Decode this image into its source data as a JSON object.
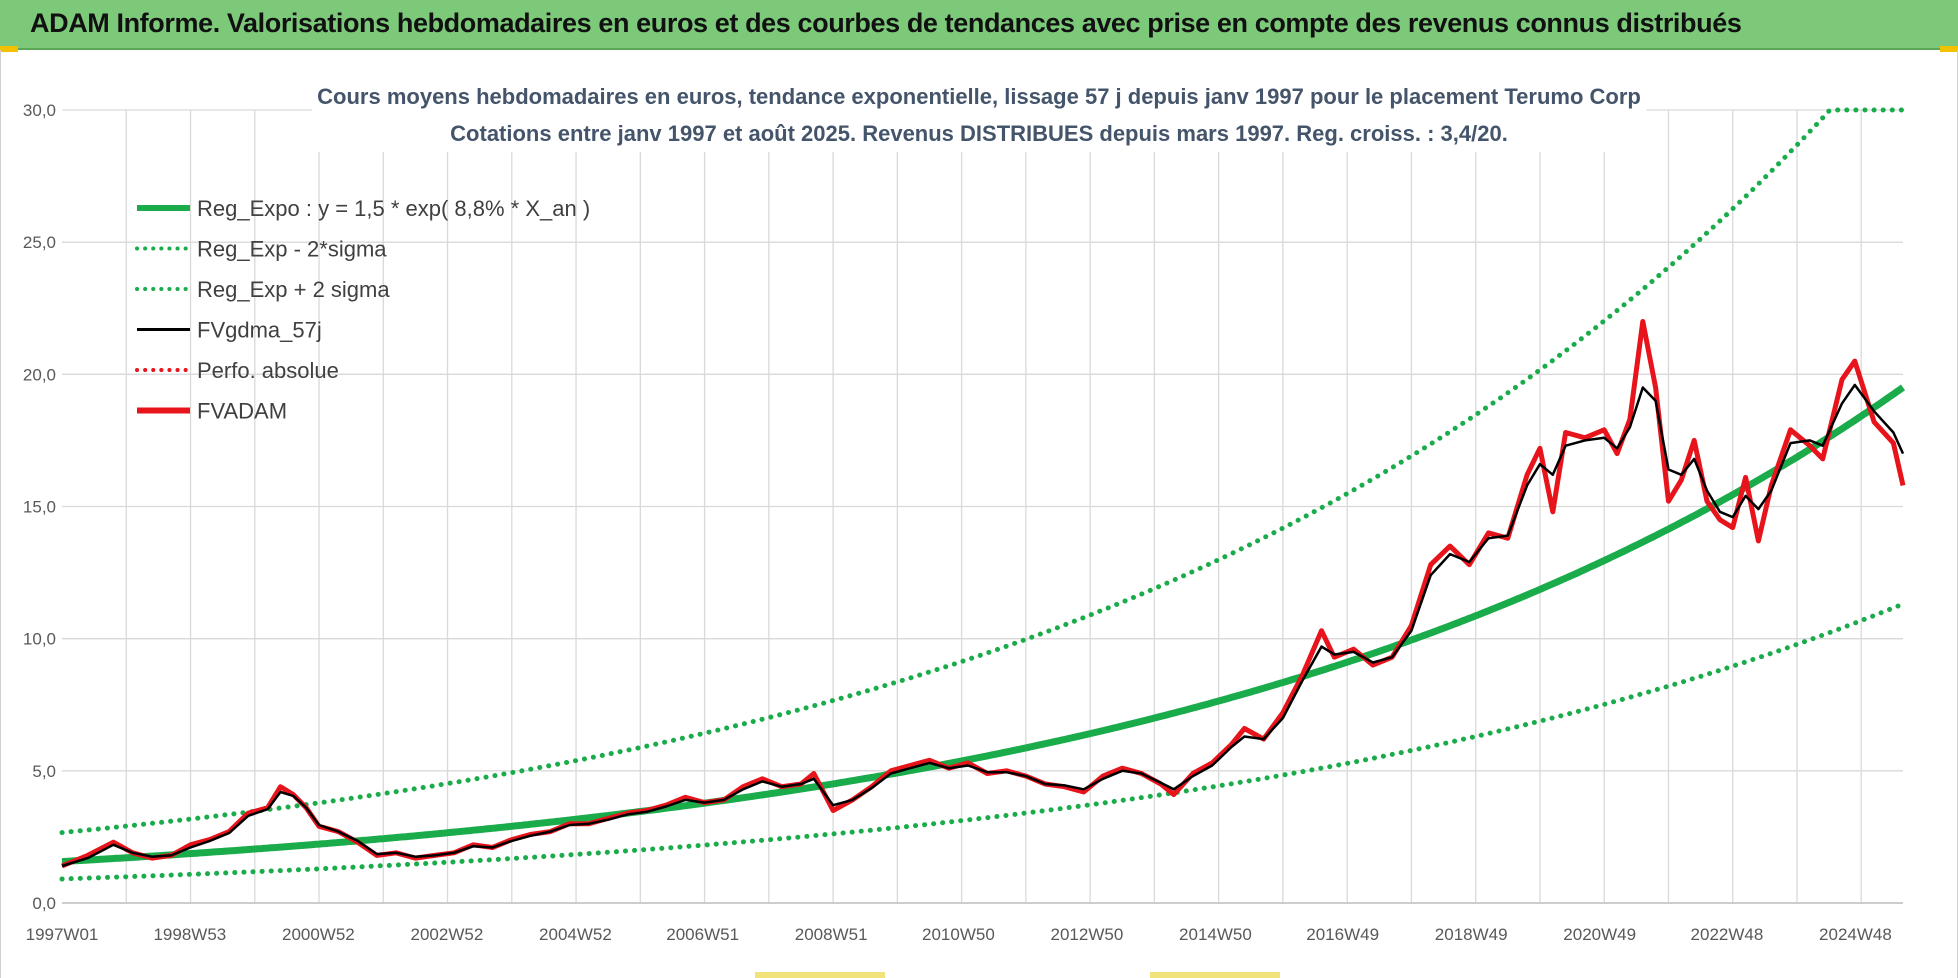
{
  "banner": {
    "title": "ADAM Informe. Valorisations hebdomadaires en euros et des courbes de tendances avec prise en compte des revenus connus distribués"
  },
  "colors": {
    "banner_bg": "#7dc97a",
    "reg_expo": "#1aab4b",
    "sigma": "#1aab4b",
    "fvgdma": "#000000",
    "perfo": "#e8141b",
    "fvadam": "#e8141b",
    "grid": "#d9d9d9"
  },
  "chart_data": {
    "type": "line",
    "title": "Cours moyens hebdomadaires en euros, tendance exponentielle, lissage 57 j depuis janv 1997 pour le placement Terumo Corp",
    "subtitle": "Cotations entre janv 1997 et août 2025.  Revenus DISTRIBUES depuis mars 1997. Reg. croiss. : 3,4/20.",
    "xlabel": "",
    "ylabel": "",
    "xlim": [
      1997.0,
      2025.65
    ],
    "ylim": [
      0,
      30
    ],
    "y_ticks": [
      "0,0",
      "5,0",
      "10,0",
      "15,0",
      "20,0",
      "25,0",
      "30,0"
    ],
    "x_ticks": [
      {
        "label": "1997W01",
        "x": 1997.0
      },
      {
        "label": "1998W53",
        "x": 1998.99
      },
      {
        "label": "2000W52",
        "x": 2000.99
      },
      {
        "label": "2002W52",
        "x": 2002.99
      },
      {
        "label": "2004W52",
        "x": 2004.99
      },
      {
        "label": "2006W51",
        "x": 2006.97
      },
      {
        "label": "2008W51",
        "x": 2008.97
      },
      {
        "label": "2010W50",
        "x": 2010.95
      },
      {
        "label": "2012W50",
        "x": 2012.95
      },
      {
        "label": "2014W50",
        "x": 2014.95
      },
      {
        "label": "2016W49",
        "x": 2016.93
      },
      {
        "label": "2018W49",
        "x": 2018.93
      },
      {
        "label": "2020W49",
        "x": 2020.93
      },
      {
        "label": "2022W48",
        "x": 2022.91
      },
      {
        "label": "2024W48",
        "x": 2024.91
      }
    ],
    "grid": true,
    "legend_position": "top-left",
    "legend": [
      {
        "label": "Reg_Expo : y = 1,5 * exp( 8,8% *  X_an )",
        "style": "solid-thick",
        "color": "#1aab4b"
      },
      {
        "label": "Reg_Exp - 2*sigma",
        "style": "dotted",
        "color": "#1aab4b"
      },
      {
        "label": "Reg_Exp + 2 sigma",
        "style": "dotted",
        "color": "#1aab4b"
      },
      {
        "label": "FVgdma_57j",
        "style": "solid",
        "color": "#000000"
      },
      {
        "label": "Perfo. absolue",
        "style": "dotted",
        "color": "#e8141b"
      },
      {
        "label": "FVADAM",
        "style": "solid-thick",
        "color": "#e8141b"
      }
    ],
    "series": [
      {
        "name": "FVADAM",
        "points": [
          [
            1997.0,
            1.4
          ],
          [
            1997.4,
            1.8
          ],
          [
            1997.8,
            2.3
          ],
          [
            1998.1,
            1.9
          ],
          [
            1998.4,
            1.7
          ],
          [
            1998.7,
            1.8
          ],
          [
            1999.0,
            2.2
          ],
          [
            1999.3,
            2.4
          ],
          [
            1999.6,
            2.7
          ],
          [
            1999.9,
            3.4
          ],
          [
            2000.2,
            3.6
          ],
          [
            2000.4,
            4.4
          ],
          [
            2000.6,
            4.1
          ],
          [
            2000.8,
            3.6
          ],
          [
            2001.0,
            2.9
          ],
          [
            2001.3,
            2.7
          ],
          [
            2001.6,
            2.3
          ],
          [
            2001.9,
            1.8
          ],
          [
            2002.2,
            1.9
          ],
          [
            2002.5,
            1.7
          ],
          [
            2002.8,
            1.8
          ],
          [
            2003.1,
            1.9
          ],
          [
            2003.4,
            2.2
          ],
          [
            2003.7,
            2.1
          ],
          [
            2004.0,
            2.4
          ],
          [
            2004.3,
            2.6
          ],
          [
            2004.6,
            2.7
          ],
          [
            2004.9,
            3.0
          ],
          [
            2005.2,
            3.0
          ],
          [
            2005.5,
            3.2
          ],
          [
            2005.8,
            3.4
          ],
          [
            2006.1,
            3.5
          ],
          [
            2006.4,
            3.7
          ],
          [
            2006.7,
            4.0
          ],
          [
            2007.0,
            3.8
          ],
          [
            2007.3,
            3.9
          ],
          [
            2007.6,
            4.4
          ],
          [
            2007.9,
            4.7
          ],
          [
            2008.2,
            4.4
          ],
          [
            2008.5,
            4.5
          ],
          [
            2008.7,
            4.9
          ],
          [
            2009.0,
            3.5
          ],
          [
            2009.3,
            3.9
          ],
          [
            2009.6,
            4.4
          ],
          [
            2009.9,
            5.0
          ],
          [
            2010.2,
            5.2
          ],
          [
            2010.5,
            5.4
          ],
          [
            2010.8,
            5.1
          ],
          [
            2011.1,
            5.3
          ],
          [
            2011.4,
            4.9
          ],
          [
            2011.7,
            5.0
          ],
          [
            2012.0,
            4.8
          ],
          [
            2012.3,
            4.5
          ],
          [
            2012.6,
            4.4
          ],
          [
            2012.9,
            4.2
          ],
          [
            2013.2,
            4.8
          ],
          [
            2013.5,
            5.1
          ],
          [
            2013.8,
            4.9
          ],
          [
            2014.1,
            4.5
          ],
          [
            2014.3,
            4.1
          ],
          [
            2014.6,
            4.9
          ],
          [
            2014.9,
            5.3
          ],
          [
            2015.2,
            6.0
          ],
          [
            2015.4,
            6.6
          ],
          [
            2015.7,
            6.2
          ],
          [
            2016.0,
            7.2
          ],
          [
            2016.3,
            8.6
          ],
          [
            2016.6,
            10.3
          ],
          [
            2016.8,
            9.3
          ],
          [
            2017.1,
            9.6
          ],
          [
            2017.4,
            9.0
          ],
          [
            2017.7,
            9.3
          ],
          [
            2018.0,
            10.5
          ],
          [
            2018.3,
            12.8
          ],
          [
            2018.6,
            13.5
          ],
          [
            2018.9,
            12.8
          ],
          [
            2019.2,
            14.0
          ],
          [
            2019.5,
            13.8
          ],
          [
            2019.8,
            16.2
          ],
          [
            2020.0,
            17.2
          ],
          [
            2020.2,
            14.8
          ],
          [
            2020.4,
            17.8
          ],
          [
            2020.7,
            17.6
          ],
          [
            2021.0,
            17.9
          ],
          [
            2021.2,
            17.0
          ],
          [
            2021.4,
            18.3
          ],
          [
            2021.6,
            22.0
          ],
          [
            2021.8,
            19.5
          ],
          [
            2022.0,
            15.2
          ],
          [
            2022.2,
            16.0
          ],
          [
            2022.4,
            17.5
          ],
          [
            2022.6,
            15.2
          ],
          [
            2022.8,
            14.5
          ],
          [
            2023.0,
            14.2
          ],
          [
            2023.2,
            16.1
          ],
          [
            2023.4,
            13.7
          ],
          [
            2023.6,
            15.8
          ],
          [
            2023.9,
            17.9
          ],
          [
            2024.2,
            17.3
          ],
          [
            2024.4,
            16.8
          ],
          [
            2024.7,
            19.8
          ],
          [
            2024.9,
            20.5
          ],
          [
            2025.2,
            18.2
          ],
          [
            2025.5,
            17.4
          ],
          [
            2025.65,
            15.8
          ]
        ]
      },
      {
        "name": "FVgdma_57j",
        "points": [
          [
            1997.0,
            1.4
          ],
          [
            1997.4,
            1.7
          ],
          [
            1997.8,
            2.2
          ],
          [
            1998.1,
            1.9
          ],
          [
            1998.4,
            1.75
          ],
          [
            1998.7,
            1.8
          ],
          [
            1999.0,
            2.1
          ],
          [
            1999.3,
            2.35
          ],
          [
            1999.6,
            2.65
          ],
          [
            1999.9,
            3.3
          ],
          [
            2000.2,
            3.55
          ],
          [
            2000.4,
            4.2
          ],
          [
            2000.6,
            4.05
          ],
          [
            2000.8,
            3.6
          ],
          [
            2001.0,
            2.95
          ],
          [
            2001.3,
            2.7
          ],
          [
            2001.6,
            2.35
          ],
          [
            2001.9,
            1.85
          ],
          [
            2002.2,
            1.9
          ],
          [
            2002.5,
            1.75
          ],
          [
            2002.8,
            1.8
          ],
          [
            2003.1,
            1.9
          ],
          [
            2003.4,
            2.15
          ],
          [
            2003.7,
            2.1
          ],
          [
            2004.0,
            2.35
          ],
          [
            2004.3,
            2.55
          ],
          [
            2004.6,
            2.7
          ],
          [
            2004.9,
            2.95
          ],
          [
            2005.2,
            3.0
          ],
          [
            2005.5,
            3.15
          ],
          [
            2005.8,
            3.35
          ],
          [
            2006.1,
            3.45
          ],
          [
            2006.4,
            3.65
          ],
          [
            2006.7,
            3.9
          ],
          [
            2007.0,
            3.8
          ],
          [
            2007.3,
            3.9
          ],
          [
            2007.6,
            4.3
          ],
          [
            2007.9,
            4.6
          ],
          [
            2008.2,
            4.4
          ],
          [
            2008.5,
            4.5
          ],
          [
            2008.7,
            4.7
          ],
          [
            2009.0,
            3.7
          ],
          [
            2009.3,
            3.9
          ],
          [
            2009.6,
            4.35
          ],
          [
            2009.9,
            4.9
          ],
          [
            2010.2,
            5.1
          ],
          [
            2010.5,
            5.3
          ],
          [
            2010.8,
            5.1
          ],
          [
            2011.1,
            5.2
          ],
          [
            2011.4,
            4.95
          ],
          [
            2011.7,
            4.95
          ],
          [
            2012.0,
            4.8
          ],
          [
            2012.3,
            4.5
          ],
          [
            2012.6,
            4.45
          ],
          [
            2012.9,
            4.3
          ],
          [
            2013.2,
            4.7
          ],
          [
            2013.5,
            5.0
          ],
          [
            2013.8,
            4.9
          ],
          [
            2014.1,
            4.55
          ],
          [
            2014.3,
            4.3
          ],
          [
            2014.6,
            4.8
          ],
          [
            2014.9,
            5.2
          ],
          [
            2015.2,
            5.9
          ],
          [
            2015.4,
            6.3
          ],
          [
            2015.7,
            6.2
          ],
          [
            2016.0,
            7.0
          ],
          [
            2016.3,
            8.4
          ],
          [
            2016.6,
            9.7
          ],
          [
            2016.8,
            9.4
          ],
          [
            2017.1,
            9.5
          ],
          [
            2017.4,
            9.1
          ],
          [
            2017.7,
            9.3
          ],
          [
            2018.0,
            10.3
          ],
          [
            2018.3,
            12.4
          ],
          [
            2018.6,
            13.2
          ],
          [
            2018.9,
            12.9
          ],
          [
            2019.2,
            13.8
          ],
          [
            2019.5,
            13.9
          ],
          [
            2019.8,
            15.8
          ],
          [
            2020.0,
            16.6
          ],
          [
            2020.2,
            16.2
          ],
          [
            2020.4,
            17.3
          ],
          [
            2020.7,
            17.5
          ],
          [
            2021.0,
            17.6
          ],
          [
            2021.2,
            17.2
          ],
          [
            2021.4,
            18.0
          ],
          [
            2021.6,
            19.5
          ],
          [
            2021.8,
            19.0
          ],
          [
            2022.0,
            16.4
          ],
          [
            2022.2,
            16.2
          ],
          [
            2022.4,
            16.8
          ],
          [
            2022.6,
            15.6
          ],
          [
            2022.8,
            14.8
          ],
          [
            2023.0,
            14.6
          ],
          [
            2023.2,
            15.4
          ],
          [
            2023.4,
            14.9
          ],
          [
            2023.6,
            15.6
          ],
          [
            2023.9,
            17.4
          ],
          [
            2024.2,
            17.5
          ],
          [
            2024.4,
            17.3
          ],
          [
            2024.7,
            18.9
          ],
          [
            2024.9,
            19.6
          ],
          [
            2025.2,
            18.6
          ],
          [
            2025.5,
            17.8
          ],
          [
            2025.65,
            17.0
          ]
        ]
      },
      {
        "name": "Reg_Expo : y = 1,5 * exp( 8,8% *  X_an )",
        "a": 1.5,
        "rate": 0.088,
        "x0": 1996.5,
        "clip": 30
      },
      {
        "name": "Reg_Exp - 2*sigma",
        "a": 0.87,
        "rate": 0.088,
        "x0": 1996.5,
        "clip": 30
      },
      {
        "name": "Reg_Exp + 2 sigma",
        "a": 2.55,
        "rate": 0.088,
        "x0": 1996.5,
        "clip": 30
      }
    ]
  }
}
